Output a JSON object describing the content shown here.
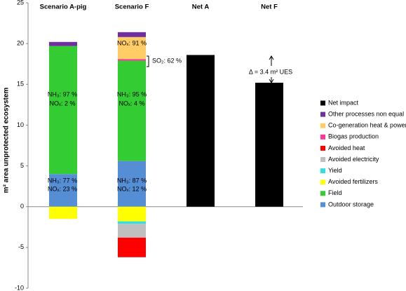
{
  "chart_data": {
    "type": "stacked_bar",
    "y_label": "m² area unprotected ecosystem",
    "categories": [
      "Scenario A-pig",
      "Scenario F",
      "Net A",
      "Net F"
    ],
    "ylim": [
      -10,
      25
    ],
    "yticks": [
      -10,
      -5,
      0,
      5,
      10,
      15,
      20,
      25
    ],
    "series": [
      {
        "name": "Outdoor storage",
        "color": "#558ed5",
        "values": [
          4.0,
          5.6,
          null,
          null
        ]
      },
      {
        "name": "Field",
        "color": "#33cc33",
        "values": [
          15.7,
          12.3,
          null,
          null
        ]
      },
      {
        "name": "Avoided fertilizers",
        "color": "#ffff00",
        "values": [
          -1.5,
          -1.8,
          null,
          null
        ]
      },
      {
        "name": "Yield",
        "color": "#33e0e0",
        "values": [
          null,
          -0.3,
          null,
          null
        ]
      },
      {
        "name": "Avoided electricity",
        "color": "#bfbfbf",
        "values": [
          null,
          -1.7,
          null,
          null
        ]
      },
      {
        "name": "Avoided heat",
        "color": "#ff0000",
        "values": [
          null,
          -2.4,
          null,
          null
        ]
      },
      {
        "name": "Biogas production",
        "color": "#ff3399",
        "values": [
          null,
          0.2,
          null,
          null
        ]
      },
      {
        "name": "Co-generation heat & power",
        "color": "#ffcc66",
        "values": [
          null,
          2.7,
          null,
          null
        ]
      },
      {
        "name": "Other processes non equal",
        "color": "#7030a0",
        "values": [
          0.5,
          0.6,
          null,
          null
        ]
      },
      {
        "name": "Net impact",
        "color": "#000000",
        "values": [
          null,
          null,
          18.6,
          15.2
        ]
      }
    ],
    "annotations": [
      "NH₃: 97 %",
      "NOₓ: 2 %",
      "NH₃: 77 %",
      "NOₓ: 23 %",
      "NH₃: 95 %",
      "NOₓ: 4 %",
      "NH₃: 87 %",
      "NOₓ: 12 %",
      "NOₓ: 91 %",
      "SO₂: 62 %",
      "Δ = 3.4 m² UES"
    ]
  }
}
